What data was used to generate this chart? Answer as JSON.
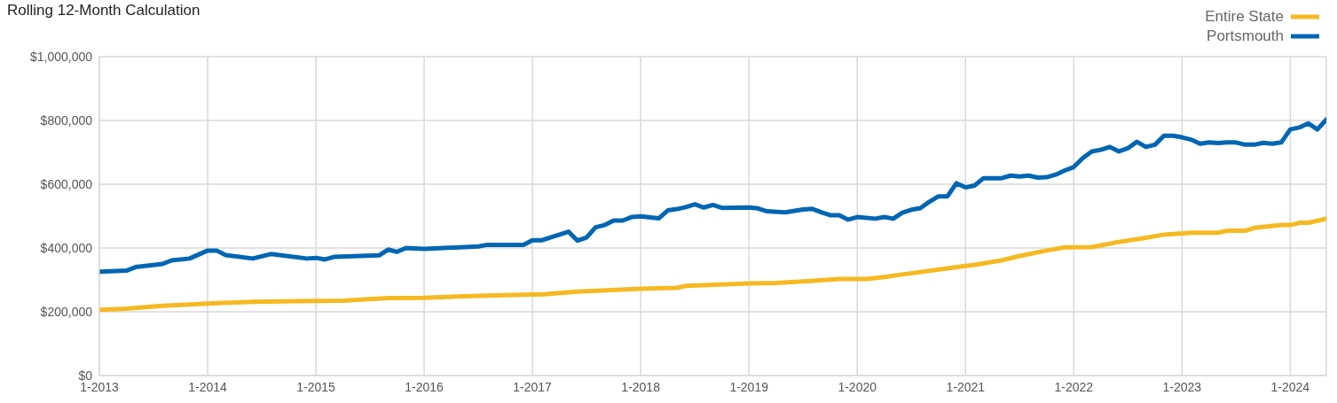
{
  "chart_data": {
    "type": "line",
    "title": "Rolling 12-Month Calculation",
    "series": [
      {
        "name": "Entire State",
        "color": "#f5b921",
        "x": [
          "2013-01",
          "2013-04",
          "2013-08",
          "2014-01",
          "2014-06",
          "2014-11",
          "2015-04",
          "2015-09",
          "2016-01",
          "2016-07",
          "2017-01",
          "2017-02",
          "2017-06",
          "2018-01",
          "2018-05",
          "2018-06",
          "2019-01",
          "2019-04",
          "2019-07",
          "2019-11",
          "2020-02",
          "2020-04",
          "2020-06",
          "2021-01",
          "2021-02",
          "2021-05",
          "2021-07",
          "2021-10",
          "2021-12",
          "2022-03",
          "2022-06",
          "2022-09",
          "2022-11",
          "2022-12",
          "2023-02",
          "2023-05",
          "2023-06",
          "2023-08",
          "2023-09",
          "2023-12",
          "2024-01",
          "2024-02",
          "2024-03",
          "2024-05"
        ],
        "values": [
          206000,
          210000,
          219000,
          226000,
          231000,
          233000,
          235000,
          243000,
          244000,
          250000,
          254000,
          254000,
          263000,
          272000,
          275000,
          281000,
          289000,
          290000,
          295000,
          303000,
          303000,
          309000,
          317000,
          344000,
          347000,
          361000,
          375000,
          392000,
          402000,
          403000,
          419000,
          432000,
          442000,
          444000,
          448000,
          448000,
          454000,
          454000,
          463000,
          472000,
          472000,
          479000,
          479000,
          492000
        ]
      },
      {
        "name": "Portsmouth",
        "color": "#0066b3",
        "x": [
          "2013-01",
          "2013-04",
          "2013-05",
          "2013-08",
          "2013-09",
          "2013-11",
          "2014-01",
          "2014-02",
          "2014-03",
          "2014-06",
          "2014-08",
          "2014-12",
          "2015-01",
          "2015-02",
          "2015-03",
          "2015-08",
          "2015-09",
          "2015-10",
          "2015-11",
          "2016-01",
          "2016-07",
          "2016-08",
          "2016-12",
          "2017-01",
          "2017-02",
          "2017-05",
          "2017-06",
          "2017-07",
          "2017-08",
          "2017-09",
          "2017-10",
          "2017-11",
          "2017-12",
          "2018-01",
          "2018-03",
          "2018-04",
          "2018-05",
          "2018-06",
          "2018-07",
          "2018-08",
          "2018-09",
          "2018-10",
          "2019-01",
          "2019-02",
          "2019-03",
          "2019-05",
          "2019-07",
          "2019-08",
          "2019-09",
          "2019-10",
          "2019-11",
          "2019-12",
          "2020-01",
          "2020-03",
          "2020-04",
          "2020-05",
          "2020-06",
          "2020-07",
          "2020-08",
          "2020-09",
          "2020-10",
          "2020-11",
          "2020-12",
          "2021-01",
          "2021-02",
          "2021-03",
          "2021-05",
          "2021-06",
          "2021-07",
          "2021-08",
          "2021-09",
          "2021-10",
          "2021-11",
          "2021-12",
          "2022-01",
          "2022-02",
          "2022-03",
          "2022-04",
          "2022-05",
          "2022-06",
          "2022-07",
          "2022-08",
          "2022-09",
          "2022-10",
          "2022-11",
          "2022-12",
          "2023-01",
          "2023-02",
          "2023-03",
          "2023-04",
          "2023-05",
          "2023-06",
          "2023-07",
          "2023-08",
          "2023-09",
          "2023-10",
          "2023-11",
          "2023-12",
          "2024-01",
          "2024-02",
          "2024-03",
          "2024-04",
          "2024-05"
        ],
        "values": [
          326000,
          329000,
          340000,
          350000,
          361000,
          367000,
          392000,
          392000,
          378000,
          367000,
          381000,
          367000,
          369000,
          364000,
          372000,
          377000,
          395000,
          388000,
          400000,
          397000,
          405000,
          410000,
          410000,
          424000,
          424000,
          451000,
          423000,
          433000,
          465000,
          472000,
          486000,
          486000,
          497000,
          499000,
          493000,
          518000,
          522000,
          528000,
          537000,
          527000,
          535000,
          526000,
          527000,
          524000,
          515000,
          512000,
          521000,
          523000,
          512000,
          503000,
          503000,
          489000,
          497000,
          492000,
          497000,
          492000,
          511000,
          520000,
          525000,
          545000,
          562000,
          562000,
          603000,
          590000,
          596000,
          619000,
          619000,
          627000,
          624000,
          627000,
          621000,
          622000,
          630000,
          643000,
          654000,
          682000,
          703000,
          708000,
          717000,
          703000,
          713000,
          733000,
          717000,
          724000,
          752000,
          752000,
          747000,
          740000,
          727000,
          731000,
          729000,
          731000,
          731000,
          724000,
          724000,
          730000,
          727000,
          731000,
          772000,
          778000,
          791000,
          772000,
          803000
        ]
      }
    ],
    "xlim": [
      "2013-01",
      "2024-05"
    ],
    "xticks": [
      {
        "value": "2013-01",
        "label": "1-2013"
      },
      {
        "value": "2014-01",
        "label": "1-2014"
      },
      {
        "value": "2015-01",
        "label": "1-2015"
      },
      {
        "value": "2016-01",
        "label": "1-2016"
      },
      {
        "value": "2017-01",
        "label": "1-2017"
      },
      {
        "value": "2018-01",
        "label": "1-2018"
      },
      {
        "value": "2019-01",
        "label": "1-2019"
      },
      {
        "value": "2020-01",
        "label": "1-2020"
      },
      {
        "value": "2021-01",
        "label": "1-2021"
      },
      {
        "value": "2022-01",
        "label": "1-2022"
      },
      {
        "value": "2023-01",
        "label": "1-2023"
      },
      {
        "value": "2024-01",
        "label": "1-2024"
      }
    ],
    "ylim": [
      0,
      1000000
    ],
    "yticks": [
      {
        "value": 0,
        "label": "$0"
      },
      {
        "value": 200000,
        "label": "$200,000"
      },
      {
        "value": 400000,
        "label": "$400,000"
      },
      {
        "value": 600000,
        "label": "$600,000"
      },
      {
        "value": 800000,
        "label": "$800,000"
      },
      {
        "value": 1000000,
        "label": "$1,000,000"
      }
    ],
    "grid": true,
    "legend": "top right",
    "marker": "none",
    "line_style": "solid"
  }
}
